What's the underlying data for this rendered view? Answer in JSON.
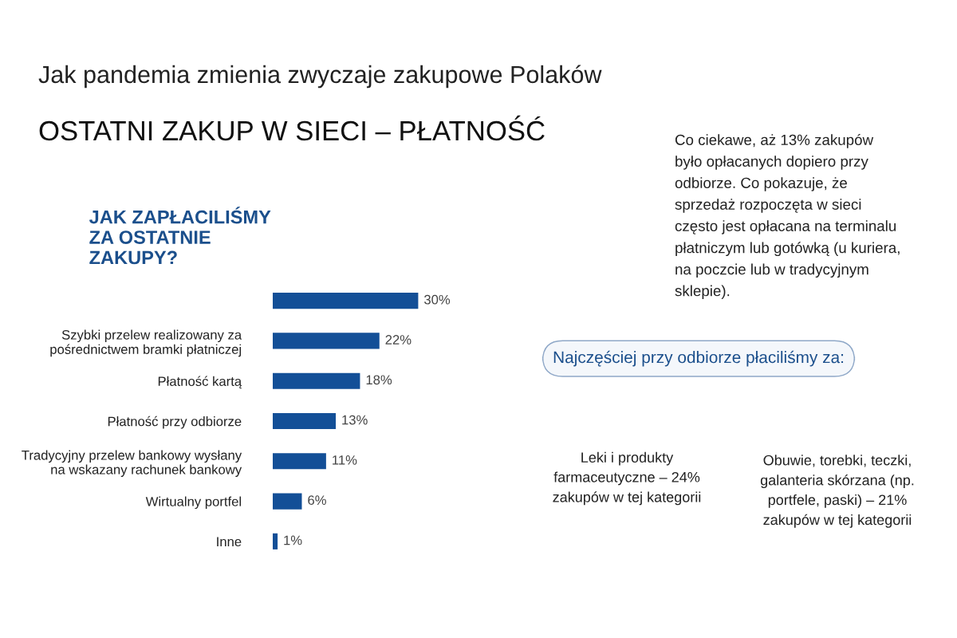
{
  "chart_data": {
    "type": "bar",
    "orientation": "horizontal",
    "title": "Jak pandemia zmienia zwyczaje zakupowe Polaków",
    "subtitle": "OSTATNI ZAKUP W SIECI – PŁATNOŚĆ",
    "categories": [
      null,
      "Szybki przelew realizowany za\npośrednictwem bramki płatniczej",
      "Płatność kartą",
      "Płatność przy odbiorze",
      "Tradycyjny przelew bankowy wysłany\nna wskazany rachunek bankowy",
      "Wirtualny portfel",
      "Inne"
    ],
    "values": [
      30,
      22,
      18,
      13,
      11,
      6,
      1
    ],
    "value_labels": [
      "30%",
      "22%",
      "18%",
      "13%",
      "11%",
      "6%",
      "1%"
    ],
    "color": "#134f97",
    "annotations": [
      "JAK ZAPŁACILIŚMY\nZA OSTATNIE\nZAKUPY?",
      "Co ciekawe, aż 13% zakupów\nbyło opłacanych dopiero przy\nodbiorze. Co pokazuje, że\nsprzedaż rozpoczęta w sieci\nczęsto jest opłacana na terminalu\npłatniczym lub gotówką (u kuriera,\nna poczcie lub w tradycyjnym\nsklepie).",
      "Najczęściej przy odbiorze płaciliśmy za:",
      "Leki i produkty\nfarmaceutyczne – 24%\nzakupów w tej kategorii",
      "Obuwie, torebki, teczki,\ngalanteria skórzana (np.\nportfele, paski) – 21%\nzakupów w tej kategorii"
    ]
  }
}
